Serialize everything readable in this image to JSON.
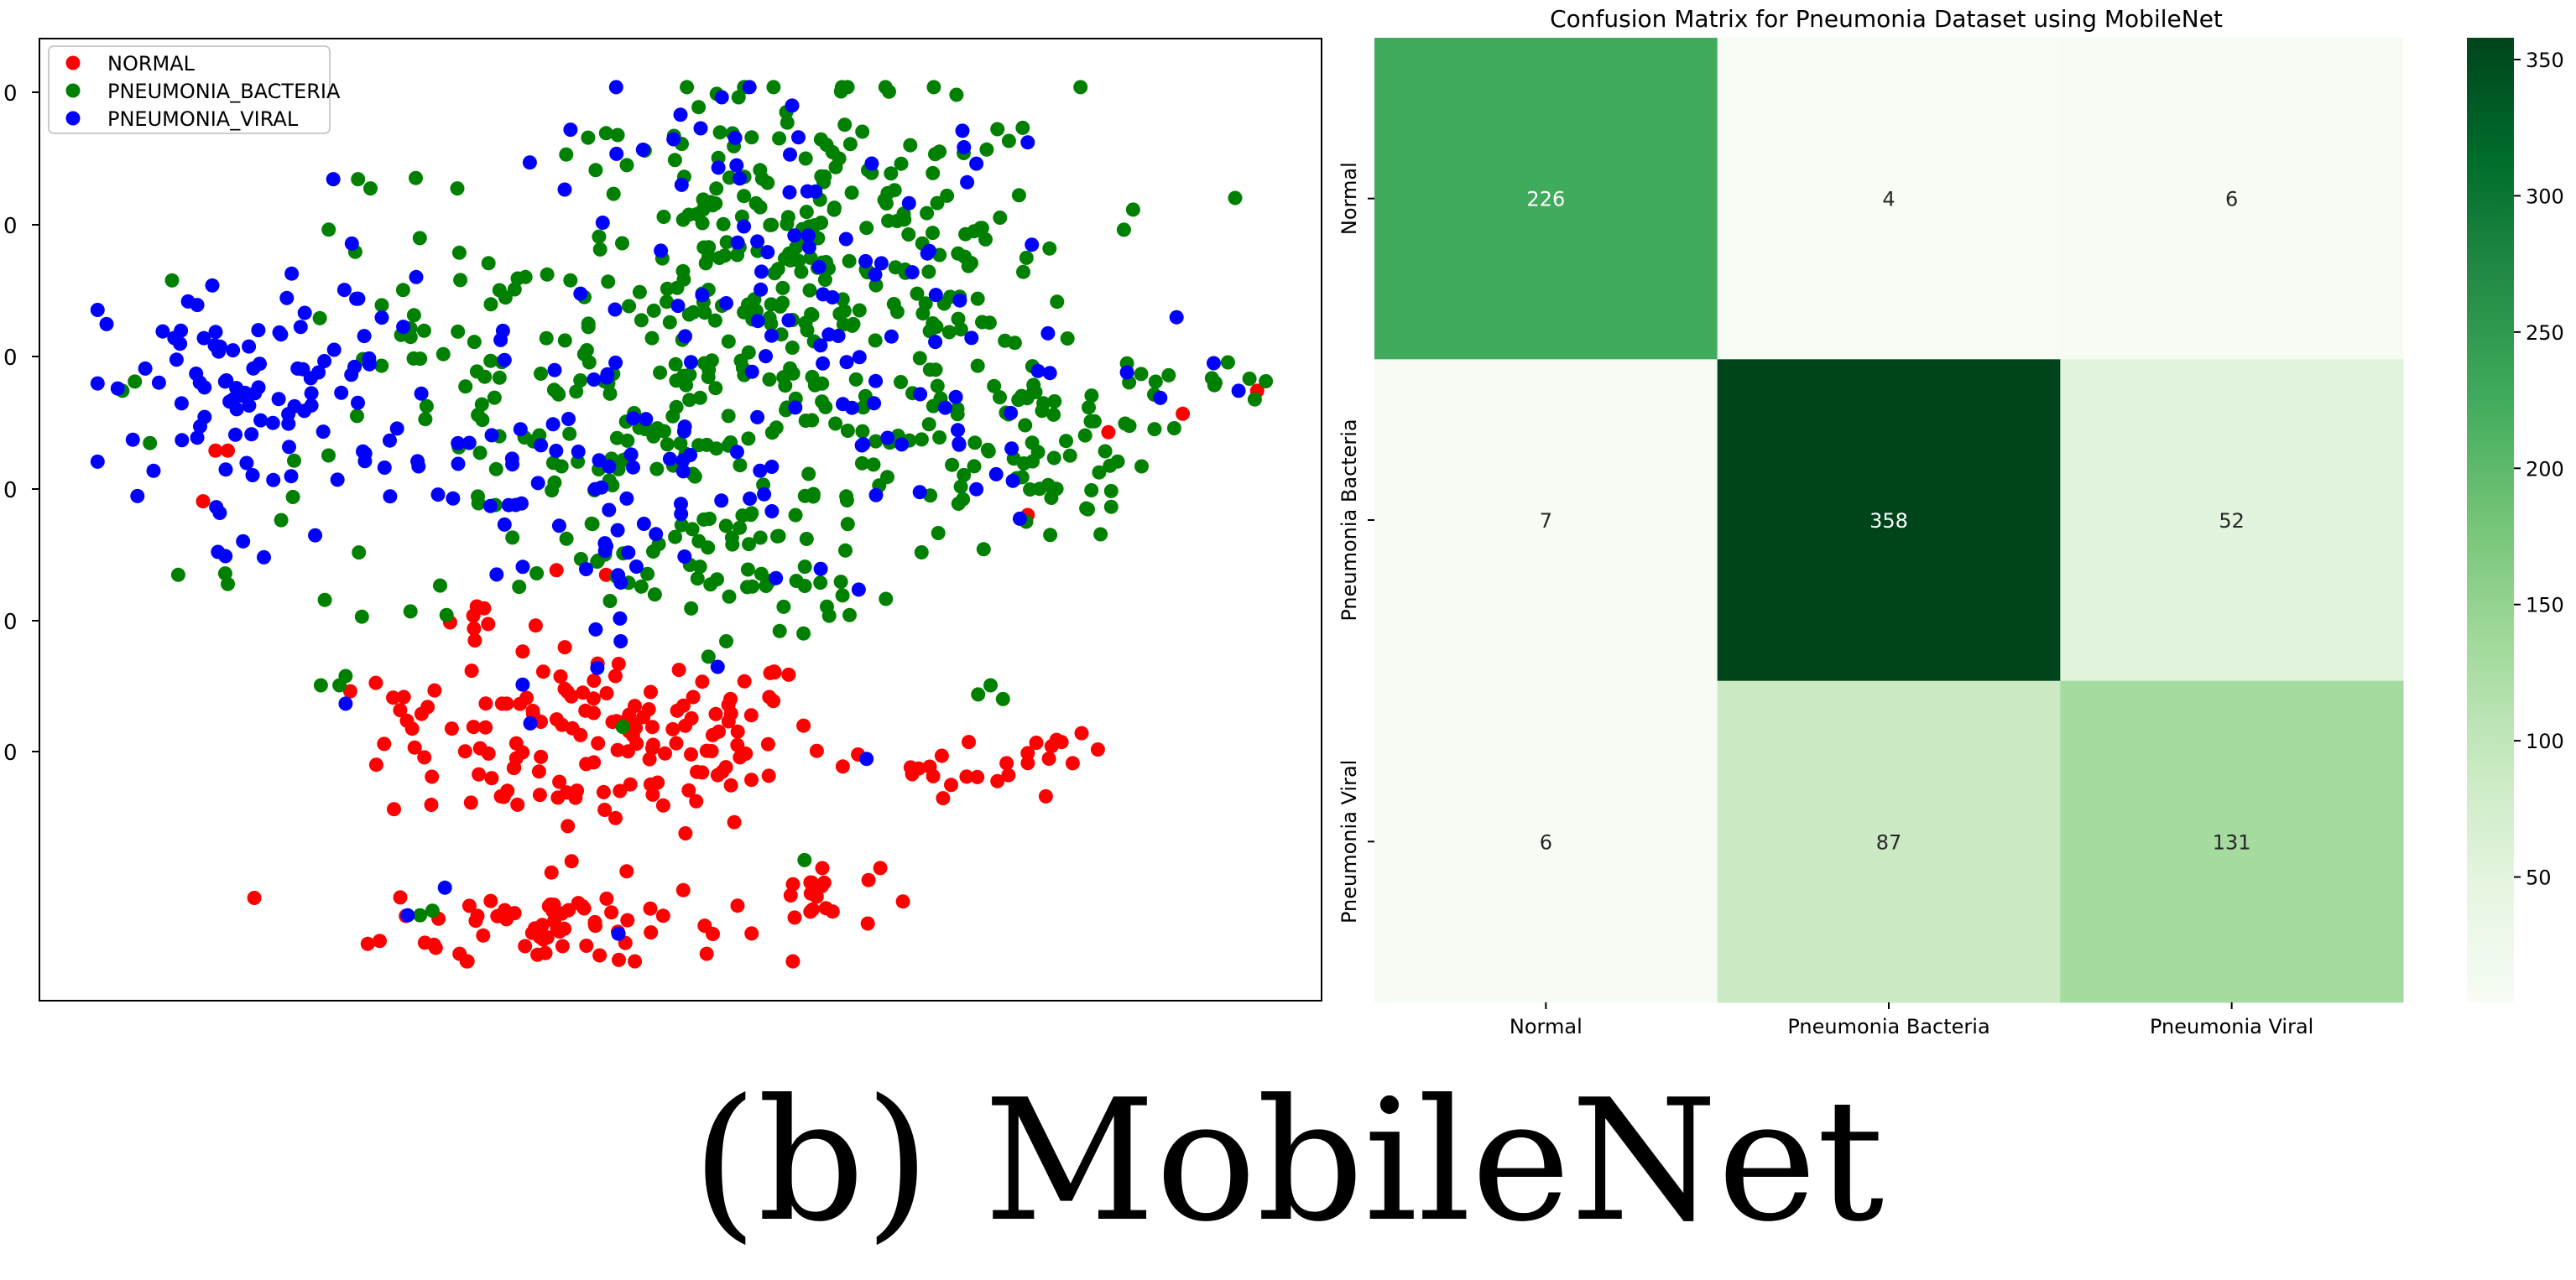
{
  "caption": "(b) MobileNet",
  "chart_data": [
    {
      "type": "scatter",
      "title": "",
      "xlabel": "",
      "ylabel": "",
      "legend_position": "top-left",
      "legend": [
        "NORMAL",
        "PNEUMONIA_BACTERIA",
        "PNEUMONIA_VIRAL"
      ],
      "colors": [
        "#ff0000",
        "#008000",
        "#0000ff"
      ],
      "y_tick_labels": [
        "0",
        "0",
        "0",
        "0",
        "0",
        "0"
      ],
      "xlim": [
        0,
        100
      ],
      "ylim": [
        0,
        100
      ],
      "series": [
        {
          "name": "NORMAL",
          "color": "#ff0000",
          "clusters": [
            {
              "cx": 44,
              "cy": 26,
              "sx": 9,
              "sy": 5,
              "n": 150
            },
            {
              "cx": 40,
              "cy": 6,
              "sx": 7,
              "sy": 2.5,
              "n": 70
            },
            {
              "cx": 61,
              "cy": 9,
              "sx": 2.5,
              "sy": 1.8,
              "n": 18
            },
            {
              "cx": 73,
              "cy": 24,
              "sx": 3,
              "sy": 2,
              "n": 16
            },
            {
              "cx": 81,
              "cy": 24,
              "sx": 1.5,
              "sy": 1.2,
              "n": 10
            },
            {
              "cx": 33,
              "cy": 39,
              "sx": 1.5,
              "sy": 2,
              "n": 6
            },
            {
              "cx": 28,
              "cy": 30,
              "sx": 1.2,
              "sy": 1.5,
              "n": 5
            }
          ],
          "points": [
            {
              "x": 12.5,
              "y": 57.5
            },
            {
              "x": 13.5,
              "y": 57.5
            },
            {
              "x": 11.5,
              "y": 52
            },
            {
              "x": 78,
              "y": 50.5
            },
            {
              "x": 84.5,
              "y": 59.5
            },
            {
              "x": 90.5,
              "y": 61.5
            },
            {
              "x": 96.5,
              "y": 64
            },
            {
              "x": 40,
              "y": 44.5
            },
            {
              "x": 44,
              "y": 44
            }
          ]
        },
        {
          "name": "PNEUMONIA_BACTERIA",
          "color": "#008000",
          "clusters": [
            {
              "cx": 60,
              "cy": 77,
              "sx": 11,
              "sy": 10,
              "n": 300
            },
            {
              "cx": 48,
              "cy": 56,
              "sx": 14,
              "sy": 10,
              "n": 140
            },
            {
              "cx": 78,
              "cy": 58,
              "sx": 5,
              "sy": 5,
              "n": 60
            },
            {
              "cx": 30,
              "cy": 70,
              "sx": 5,
              "sy": 6,
              "n": 30
            },
            {
              "cx": 92,
              "cy": 65,
              "sx": 3,
              "sy": 1.5,
              "n": 12
            },
            {
              "cx": 55,
              "cy": 44,
              "sx": 6,
              "sy": 4,
              "n": 40
            }
          ],
          "points": [
            {
              "x": 5,
              "y": 64
            },
            {
              "x": 6,
              "y": 65
            },
            {
              "x": 9,
              "y": 76
            },
            {
              "x": 9.5,
              "y": 44
            },
            {
              "x": 13.5,
              "y": 43
            },
            {
              "x": 21,
              "y": 32
            },
            {
              "x": 22.5,
              "y": 32
            },
            {
              "x": 23,
              "y": 33
            },
            {
              "x": 29,
              "y": 7
            },
            {
              "x": 30,
              "y": 7.5
            },
            {
              "x": 74,
              "y": 31
            },
            {
              "x": 75,
              "y": 32
            },
            {
              "x": 76,
              "y": 30.5
            },
            {
              "x": 60,
              "y": 13
            },
            {
              "x": 24,
              "y": 87
            },
            {
              "x": 25,
              "y": 86
            },
            {
              "x": 32,
              "y": 86
            },
            {
              "x": 44,
              "y": 92
            }
          ]
        },
        {
          "name": "PNEUMONIA_VIRAL",
          "color": "#0000ff",
          "clusters": [
            {
              "cx": 17,
              "cy": 64,
              "sx": 7,
              "sy": 6,
              "n": 100
            },
            {
              "cx": 42,
              "cy": 53,
              "sx": 9,
              "sy": 8,
              "n": 70
            },
            {
              "cx": 60,
              "cy": 75,
              "sx": 11,
              "sy": 11,
              "n": 90
            },
            {
              "cx": 72,
              "cy": 60,
              "sx": 6,
              "sy": 6,
              "n": 20
            },
            {
              "cx": 14,
              "cy": 46,
              "sx": 1.2,
              "sy": 1.5,
              "n": 4
            }
          ],
          "points": [
            {
              "x": 22,
              "y": 87
            },
            {
              "x": 23.5,
              "y": 80
            },
            {
              "x": 28,
              "y": 7
            },
            {
              "x": 31,
              "y": 10
            },
            {
              "x": 45,
              "y": 5
            },
            {
              "x": 59,
              "y": 95
            },
            {
              "x": 50,
              "y": 94
            },
            {
              "x": 78,
              "y": 91
            },
            {
              "x": 90,
              "y": 72
            },
            {
              "x": 93,
              "y": 67
            },
            {
              "x": 95,
              "y": 64
            },
            {
              "x": 23,
              "y": 30
            },
            {
              "x": 65,
              "y": 24
            },
            {
              "x": 86,
              "y": 66
            },
            {
              "x": 53,
              "y": 34
            }
          ]
        }
      ]
    },
    {
      "type": "heatmap",
      "title": "Confusion Matrix for Pneumonia Dataset using MobileNet",
      "x_categories": [
        "Normal",
        "Pneumonia Bacteria",
        "Pneumonia Viral"
      ],
      "y_categories": [
        "Normal",
        "Pneumonia Bacteria",
        "Pneumonia Viral"
      ],
      "values": [
        [
          226,
          4,
          6
        ],
        [
          7,
          358,
          52
        ],
        [
          6,
          87,
          131
        ]
      ],
      "colormap": "Greens",
      "colorbar_range": [
        4,
        358
      ],
      "colorbar_ticks": [
        50,
        100,
        150,
        200,
        250,
        300,
        350
      ]
    }
  ]
}
